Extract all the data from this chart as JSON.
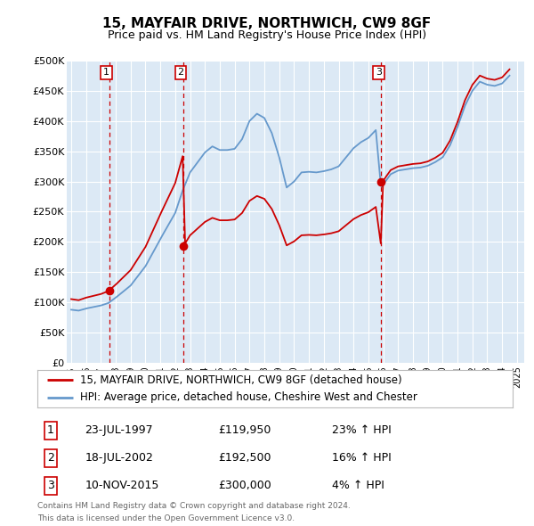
{
  "title": "15, MAYFAIR DRIVE, NORTHWICH, CW9 8GF",
  "subtitle": "Price paid vs. HM Land Registry's House Price Index (HPI)",
  "plot_bg_color": "#dce9f5",
  "grid_color": "#ffffff",
  "ylim": [
    0,
    500000
  ],
  "yticks": [
    0,
    50000,
    100000,
    150000,
    200000,
    250000,
    300000,
    350000,
    400000,
    450000,
    500000
  ],
  "ytick_labels": [
    "£0",
    "£50K",
    "£100K",
    "£150K",
    "£200K",
    "£250K",
    "£300K",
    "£350K",
    "£400K",
    "£450K",
    "£500K"
  ],
  "xlim_start": 1994.7,
  "xlim_end": 2025.5,
  "xticks": [
    1995,
    1996,
    1997,
    1998,
    1999,
    2000,
    2001,
    2002,
    2003,
    2004,
    2005,
    2006,
    2007,
    2008,
    2009,
    2010,
    2011,
    2012,
    2013,
    2014,
    2015,
    2016,
    2017,
    2018,
    2019,
    2020,
    2021,
    2022,
    2023,
    2024,
    2025
  ],
  "sale_color": "#cc0000",
  "hpi_color": "#6699cc",
  "marker_color": "#cc0000",
  "vline_color": "#cc0000",
  "transaction_box_color": "#cc0000",
  "transactions": [
    {
      "id": 1,
      "date": 1997.556,
      "price": 119950,
      "label": "23-JUL-1997",
      "price_str": "£119,950",
      "hpi_str": "23% ↑ HPI"
    },
    {
      "id": 2,
      "date": 2002.539,
      "price": 192500,
      "label": "18-JUL-2002",
      "price_str": "£192,500",
      "hpi_str": "16% ↑ HPI"
    },
    {
      "id": 3,
      "date": 2015.858,
      "price": 300000,
      "label": "10-NOV-2015",
      "price_str": "£300,000",
      "hpi_str": "4% ↑ HPI"
    }
  ],
  "legend_line1": "15, MAYFAIR DRIVE, NORTHWICH, CW9 8GF (detached house)",
  "legend_line2": "HPI: Average price, detached house, Cheshire West and Chester",
  "footer_line1": "Contains HM Land Registry data © Crown copyright and database right 2024.",
  "footer_line2": "This data is licensed under the Open Government Licence v3.0."
}
